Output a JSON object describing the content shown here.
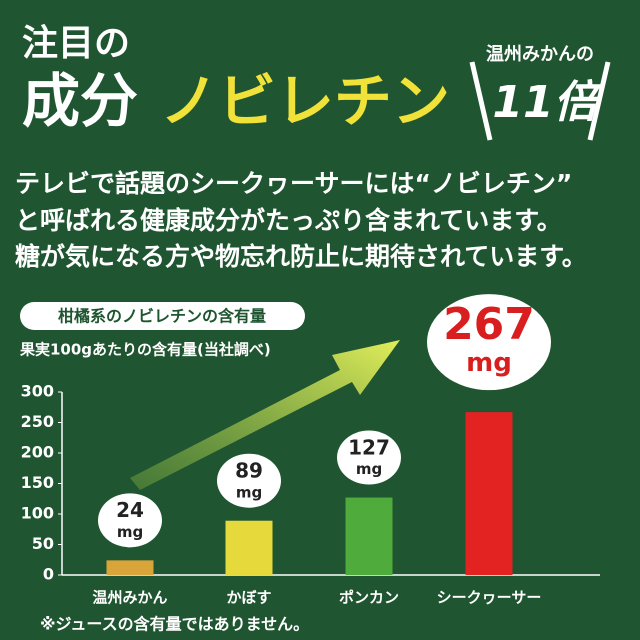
{
  "banner": {
    "label1": "注目の",
    "label2": "成分",
    "highlight": "ノビレチン",
    "compare_label": "温州みかんの",
    "compare_value": "11倍"
  },
  "body": [
    "テレビで話題のシークヮーサーには“ノビレチン”",
    "と呼ばれる健康成分がたっぷり含まれています。",
    "糖が気になる方や物忘れ防止に期待されています。"
  ],
  "chart_data": {
    "type": "bar",
    "title": "柑橘系のノビレチンの含有量",
    "subtitle": "果実100gあたりの含有量(当社調べ)",
    "categories": [
      "温州みかん",
      "かぼす",
      "ポンカン",
      "シークヮーサー"
    ],
    "values": [
      24,
      89,
      127,
      267
    ],
    "unit": "mg",
    "colors": [
      "#d9a43a",
      "#e6d93c",
      "#4eab3c",
      "#e32222"
    ],
    "ylim": [
      0,
      300
    ],
    "yticks": [
      0,
      50,
      100,
      150,
      200,
      250,
      300
    ],
    "note": "※ジュースの含有量ではありません。"
  }
}
